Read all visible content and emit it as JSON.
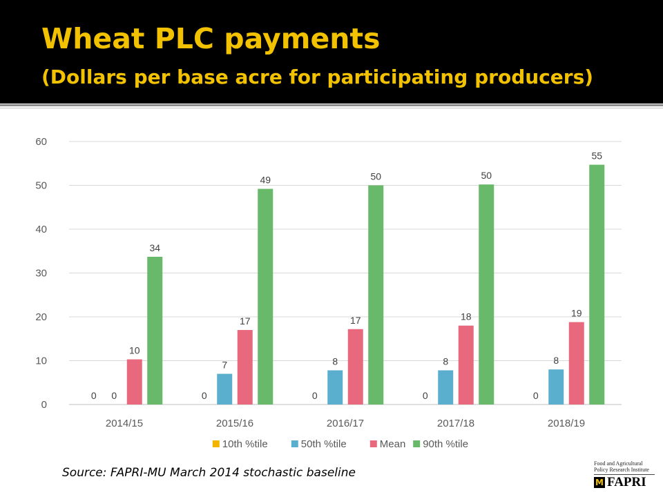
{
  "slide": {
    "title": "Wheat PLC payments",
    "subtitle": "(Dollars per base acre for participating producers)",
    "source": "Source: FAPRI-MU March 2014 stochastic baseline",
    "logo": {
      "line1": "Food and Agricultural",
      "line2": "Policy Research Institute",
      "mark": "M",
      "word": "FAPRI"
    },
    "colors": {
      "title": "#f2c200",
      "background_header": "#000000"
    }
  },
  "chart_data": {
    "type": "bar",
    "categories": [
      "2014/15",
      "2015/16",
      "2016/17",
      "2017/18",
      "2018/19"
    ],
    "series": [
      {
        "name": "10th %tile",
        "color": "#f2b500",
        "values": [
          0,
          0,
          0,
          0,
          0
        ],
        "labels": [
          "0",
          "0",
          "0",
          "0",
          "0"
        ]
      },
      {
        "name": "50th %tile",
        "color": "#5aafce",
        "values": [
          0,
          7,
          7.8,
          7.8,
          8
        ],
        "labels": [
          "0",
          "7",
          "8",
          "8",
          "8"
        ]
      },
      {
        "name": "Mean",
        "color": "#e8697e",
        "values": [
          10.3,
          17,
          17.2,
          18,
          18.8
        ],
        "labels": [
          "10",
          "17",
          "17",
          "18",
          "19"
        ]
      },
      {
        "name": "90th %tile",
        "color": "#68b96a",
        "values": [
          33.7,
          49.2,
          50,
          50.2,
          54.7
        ],
        "labels": [
          "34",
          "49",
          "50",
          "50",
          "55"
        ]
      }
    ],
    "y_ticks": [
      "0",
      "10",
      "20",
      "30",
      "40",
      "50",
      "60"
    ],
    "ylim": [
      0,
      60
    ],
    "grid": true,
    "legend": "bottom",
    "title": "",
    "xlabel": "",
    "ylabel": ""
  }
}
